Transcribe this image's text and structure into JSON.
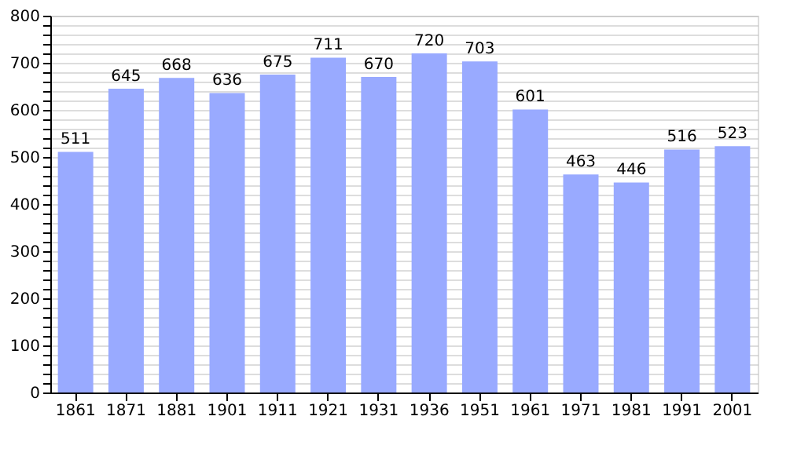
{
  "chart_data": {
    "type": "bar",
    "categories": [
      "1861",
      "1871",
      "1881",
      "1901",
      "1911",
      "1921",
      "1931",
      "1936",
      "1951",
      "1961",
      "1971",
      "1981",
      "1991",
      "2001"
    ],
    "values": [
      511,
      645,
      668,
      636,
      675,
      711,
      670,
      720,
      703,
      601,
      463,
      446,
      516,
      523
    ],
    "color": "#99aaff",
    "ylim": [
      0,
      800
    ],
    "yticks": [
      0,
      {
        "value": 20,
        "label": null
      },
      {
        "value": 40,
        "label": null
      },
      {
        "value": 60,
        "label": null
      },
      {
        "value": 80,
        "label": null
      },
      100,
      {
        "value": 120,
        "label": null
      },
      {
        "value": 140,
        "label": null
      },
      {
        "value": 160,
        "label": null
      },
      {
        "value": 180,
        "label": null
      },
      200,
      {
        "value": 220,
        "label": null
      },
      {
        "value": 240,
        "label": null
      },
      {
        "value": 260,
        "label": null
      },
      {
        "value": 280,
        "label": null
      },
      300,
      {
        "value": 320,
        "label": null
      },
      {
        "value": 340,
        "label": null
      },
      {
        "value": 360,
        "label": null
      },
      {
        "value": 380,
        "label": null
      },
      400,
      {
        "value": 420,
        "label": null
      },
      {
        "value": 440,
        "label": null
      },
      {
        "value": 460,
        "label": null
      },
      {
        "value": 480,
        "label": null
      },
      500,
      {
        "value": 520,
        "label": null
      },
      {
        "value": 540,
        "label": null
      },
      {
        "value": 560,
        "label": null
      },
      {
        "value": 580,
        "label": null
      },
      600,
      {
        "value": 620,
        "label": null
      },
      {
        "value": 640,
        "label": null
      },
      {
        "value": 660,
        "label": null
      },
      {
        "value": 680,
        "label": null
      },
      700,
      {
        "value": 720,
        "label": null
      },
      {
        "value": 740,
        "label": null
      },
      {
        "value": 760,
        "label": null
      },
      {
        "value": 780,
        "label": null
      },
      800
    ],
    "grid": true,
    "data_labels": true
  }
}
